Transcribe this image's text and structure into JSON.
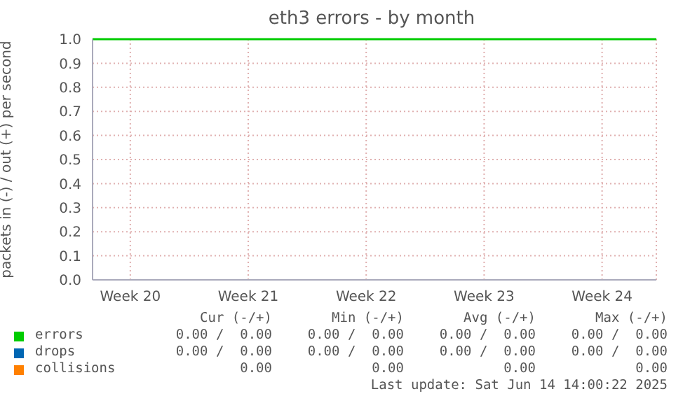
{
  "chart_data": {
    "type": "line",
    "title": "eth3 errors - by month",
    "ylabel": "packets in (-) / out (+) per second",
    "categories": [
      "Week 20",
      "Week 21",
      "Week 22",
      "Week 23",
      "Week 24"
    ],
    "series": [
      {
        "name": "errors",
        "color": "#00cc00",
        "values": [
          null,
          null,
          null,
          null,
          null
        ]
      },
      {
        "name": "drops",
        "color": "#0066b3",
        "values": [
          null,
          null,
          null,
          null,
          null
        ]
      },
      {
        "name": "collisions",
        "color": "#ff8000",
        "values": [
          null,
          null,
          null,
          null,
          null
        ]
      }
    ],
    "ylim": [
      0,
      1
    ],
    "yticks": [
      {
        "value": 0,
        "label": "0.0"
      },
      {
        "value": 0.1,
        "label": "0.1"
      },
      {
        "value": 0.2,
        "label": "0.2"
      },
      {
        "value": 0.3,
        "label": "0.3"
      },
      {
        "value": 0.4,
        "label": "0.4"
      },
      {
        "value": 0.5,
        "label": "0.5"
      },
      {
        "value": 0.6,
        "label": "0.6"
      },
      {
        "value": 0.7,
        "label": "0.7"
      },
      {
        "value": 0.8,
        "label": "0.8"
      },
      {
        "value": 0.9,
        "label": "0.9"
      },
      {
        "value": 1,
        "label": "1.0"
      }
    ],
    "ref_lines": [
      {
        "axis": "y",
        "value": 1,
        "color": "#00cc00"
      }
    ],
    "grid": true,
    "legend": "bottom",
    "annotations": [
      "Cur (-/+)",
      "Min (-/+)",
      "Avg (-/+)",
      "Max (-/+)",
      "0.00 /  0.00",
      "0.00 /  0.00",
      "0.00 /  0.00",
      "0.00 /  0.00",
      "0.00 /  0.00",
      "0.00 /  0.00",
      "0.00 /  0.00",
      "0.00 /  0.00",
      "0.00",
      "0.00",
      "0.00",
      "0.00",
      "Last update: Sat Jun 14 14:00:22 2025"
    ]
  }
}
